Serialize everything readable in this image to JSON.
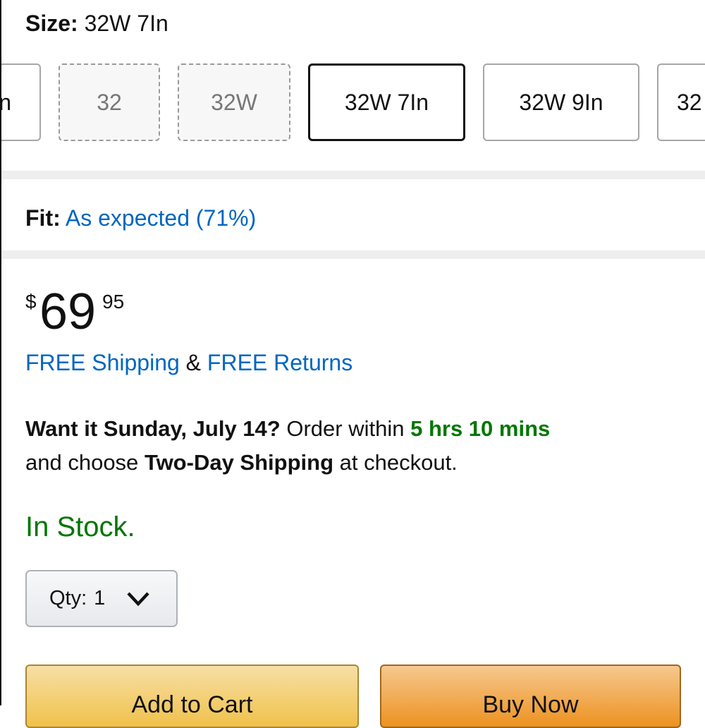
{
  "size": {
    "label": "Size:",
    "value": "32W 7In"
  },
  "swatches": [
    {
      "label": "n",
      "state": "available"
    },
    {
      "label": "32",
      "state": "unavailable"
    },
    {
      "label": "32W",
      "state": "unavailable"
    },
    {
      "label": "32W 7In",
      "state": "selected"
    },
    {
      "label": "32W 9In",
      "state": "available"
    },
    {
      "label": "32",
      "state": "available"
    }
  ],
  "fit": {
    "label": "Fit:",
    "value": "As expected (71%)"
  },
  "price": {
    "currency": "$",
    "whole": "69",
    "fraction": "95"
  },
  "shipping": {
    "free_shipping": "FREE Shipping",
    "amp": "&",
    "free_returns": "FREE Returns"
  },
  "delivery": {
    "want_it": "Want it Sunday, July 14?",
    "order_within": "Order within",
    "countdown": "5 hrs 10 mins",
    "and_choose": "and choose",
    "method": "Two-Day Shipping",
    "at_checkout": "at checkout."
  },
  "stock": "In Stock.",
  "qty": {
    "label": "Qty:",
    "value": "1"
  },
  "buttons": {
    "add_to_cart": "Add to Cart",
    "buy_now": "Buy Now"
  },
  "colors": {
    "link": "#0066c0",
    "green": "#007600",
    "cart": "#f0c14b",
    "buy": "#ed9220"
  }
}
